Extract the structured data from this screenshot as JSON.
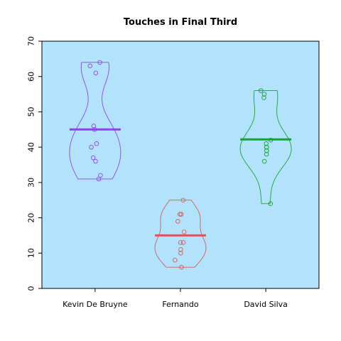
{
  "chart_data": {
    "type": "violin",
    "title": "Touches in Final Third",
    "xlabel": "",
    "ylabel": "",
    "ylim": [
      0,
      70
    ],
    "yticks": [
      0,
      10,
      20,
      30,
      40,
      50,
      60,
      70
    ],
    "categories": [
      "Kevin De Bruyne",
      "Fernando",
      "David Silva"
    ],
    "background": "#b3e2fd",
    "series": [
      {
        "category": "Kevin De Bruyne",
        "color": "#8e44ec",
        "mean": 45,
        "points": [
          64,
          63,
          61,
          46,
          45,
          41,
          40,
          37,
          36,
          32,
          31
        ]
      },
      {
        "category": "Fernando",
        "color": "#d35a5a",
        "mean": 15,
        "points": [
          25,
          21,
          21,
          19,
          16,
          13,
          13,
          11,
          10,
          8,
          6
        ]
      },
      {
        "category": "David Silva",
        "color": "#16a23a",
        "mean": 42.2,
        "points": [
          56,
          55,
          54,
          42,
          41,
          40,
          40,
          39,
          38,
          36,
          24
        ]
      }
    ]
  }
}
